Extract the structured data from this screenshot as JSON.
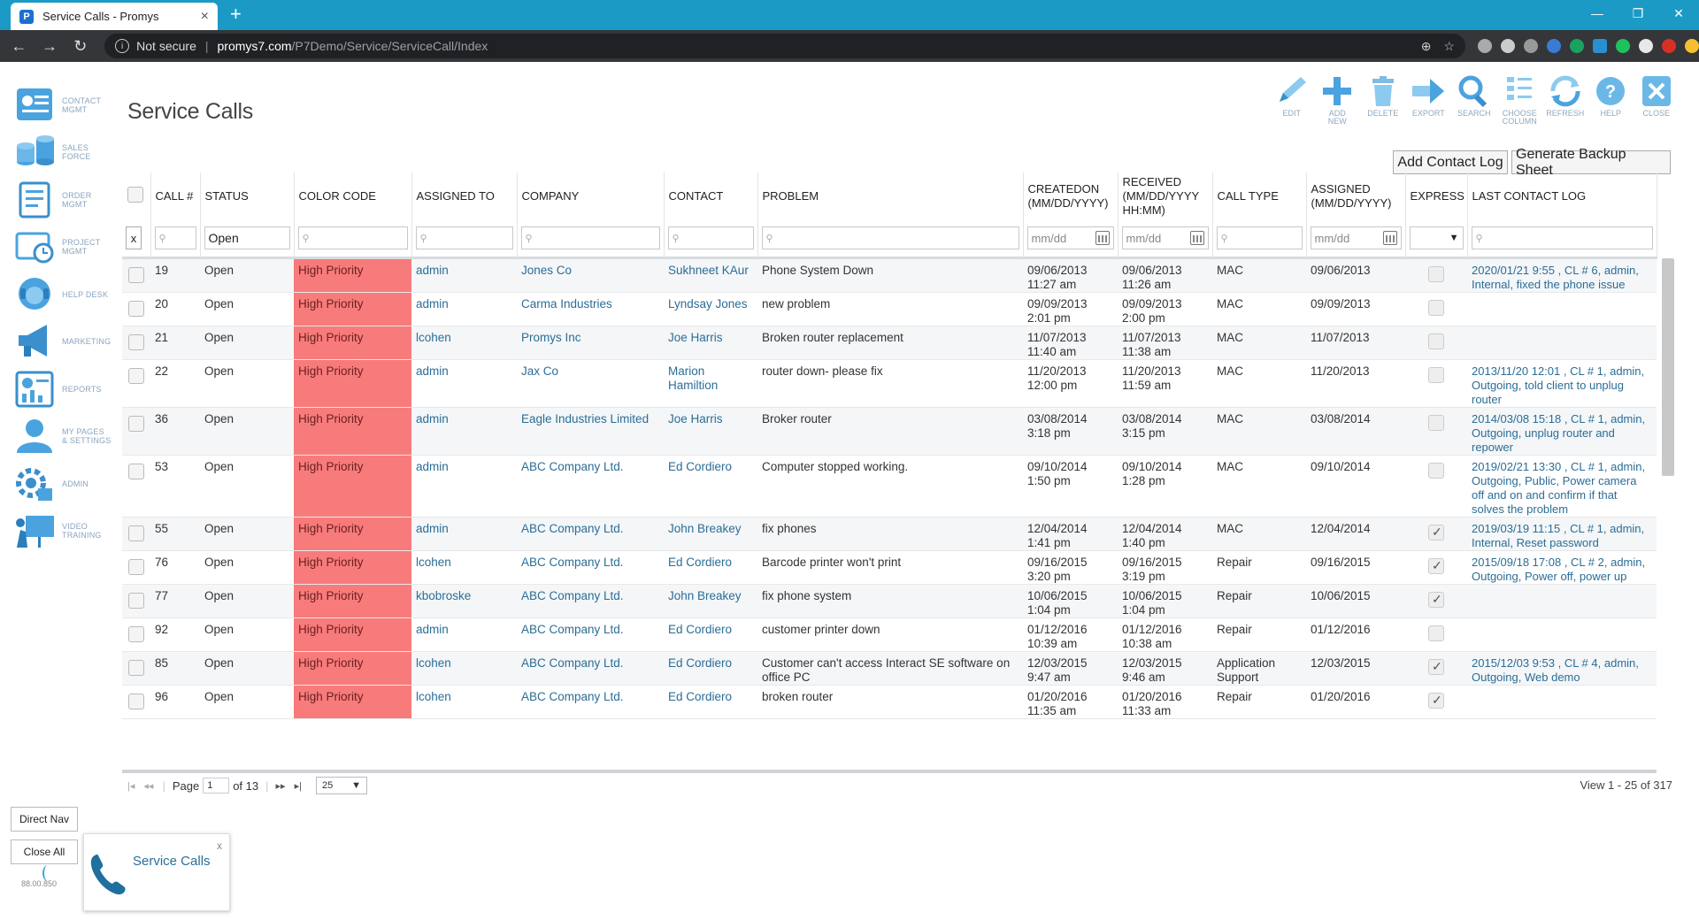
{
  "browser": {
    "tab_title": "Service Calls - Promys",
    "favicon_letter": "P",
    "new_tab": "+",
    "security_label": "Not secure",
    "url_host": "promys7.com",
    "url_path": "/P7Demo/Service/ServiceCall/Index"
  },
  "leftnav": [
    {
      "label": "CONTACT\nMGMT",
      "icon": "contact-icon"
    },
    {
      "label": "SALES\nFORCE",
      "icon": "sales-icon"
    },
    {
      "label": "ORDER\nMGMT",
      "icon": "order-icon"
    },
    {
      "label": "PROJECT\nMGMT",
      "icon": "project-icon"
    },
    {
      "label": "HELP DESK",
      "icon": "helpdesk-icon"
    },
    {
      "label": "MARKETING",
      "icon": "marketing-icon"
    },
    {
      "label": "REPORTS",
      "icon": "reports-icon"
    },
    {
      "label": "MY PAGES\n& SETTINGS",
      "icon": "user-icon"
    },
    {
      "label": "ADMIN",
      "icon": "admin-icon"
    },
    {
      "label": "VIDEO\nTRAINING",
      "icon": "video-icon"
    }
  ],
  "page": {
    "title": "Service Calls",
    "add_contact_log": "Add Contact Log",
    "generate_backup": "Generate Backup Sheet"
  },
  "toolbar": [
    {
      "label": "EDIT",
      "icon": "edit-icon"
    },
    {
      "label": "ADD\nNEW",
      "icon": "add-icon"
    },
    {
      "label": "DELETE",
      "icon": "trash-icon"
    },
    {
      "label": "EXPORT",
      "icon": "export-icon"
    },
    {
      "label": "SEARCH",
      "icon": "search-icon"
    },
    {
      "label": "CHOOSE\nCOLUMN",
      "icon": "columns-icon"
    },
    {
      "label": "REFRESH",
      "icon": "refresh-icon"
    },
    {
      "label": "HELP",
      "icon": "help-icon"
    },
    {
      "label": "CLOSE",
      "icon": "close-icon"
    }
  ],
  "columns": [
    "CALL #",
    "STATUS",
    "COLOR CODE",
    "ASSIGNED TO",
    "COMPANY",
    "CONTACT",
    "PROBLEM",
    "CREATEDON\n(MM/DD/YYYY)",
    "RECEIVED\n(MM/DD/YYYY\nHH:MM)",
    "CALL TYPE",
    "ASSIGNED\n(MM/DD/YYYY)",
    "EXPRESS",
    "LAST CONTACT LOG"
  ],
  "filters": {
    "clear": "x",
    "status": "Open",
    "date_placeholder": "mm/dd",
    "express_arrow": "▼"
  },
  "rows": [
    {
      "call": "19",
      "status": "Open",
      "color": "High Priority",
      "assigned_to": "admin",
      "company": "Jones Co",
      "contact": "Sukhneet KAur",
      "problem": "Phone System Down",
      "created": "09/06/2013\n11:27 am",
      "received": "09/06/2013\n11:26 am",
      "call_type": "MAC",
      "assigned": "09/06/2013",
      "express": false,
      "log": "2020/01/21 9:55 , CL # 6, admin, Internal, fixed the phone issue"
    },
    {
      "call": "20",
      "status": "Open",
      "color": "High Priority",
      "assigned_to": "admin",
      "company": "Carma Industries",
      "contact": "Lyndsay Jones",
      "problem": "new problem",
      "created": "09/09/2013\n2:01 pm",
      "received": "09/09/2013\n2:00 pm",
      "call_type": "MAC",
      "assigned": "09/09/2013",
      "express": false,
      "log": ""
    },
    {
      "call": "21",
      "status": "Open",
      "color": "High Priority",
      "assigned_to": "lcohen",
      "company": "Promys Inc",
      "contact": "Joe Harris",
      "problem": "Broken router replacement",
      "created": "11/07/2013\n11:40 am",
      "received": "11/07/2013\n11:38 am",
      "call_type": "MAC",
      "assigned": "11/07/2013",
      "express": false,
      "log": ""
    },
    {
      "call": "22",
      "status": "Open",
      "color": "High Priority",
      "assigned_to": "admin",
      "company": "Jax Co",
      "contact": "Marion\nHamiltion",
      "problem": "router down- please fix",
      "created": "11/20/2013\n12:00 pm",
      "received": "11/20/2013\n11:59 am",
      "call_type": "MAC",
      "assigned": "11/20/2013",
      "express": false,
      "log": "2013/11/20 12:01 , CL # 1, admin, Outgoing, told client to unplug router"
    },
    {
      "call": "36",
      "status": "Open",
      "color": "High Priority",
      "assigned_to": "admin",
      "company": "Eagle Industries Limited",
      "contact": "Joe Harris",
      "problem": "Broker router",
      "created": "03/08/2014\n3:18 pm",
      "received": "03/08/2014\n3:15 pm",
      "call_type": "MAC",
      "assigned": "03/08/2014",
      "express": false,
      "log": "2014/03/08 15:18 , CL # 1, admin, Outgoing, unplug router and repower"
    },
    {
      "call": "53",
      "status": "Open",
      "color": "High Priority",
      "assigned_to": "admin",
      "company": "ABC Company Ltd.",
      "contact": "Ed Cordiero",
      "problem": "Computer stopped working.",
      "created": "09/10/2014\n1:50 pm",
      "received": "09/10/2014\n1:28 pm",
      "call_type": "MAC",
      "assigned": "09/10/2014",
      "express": false,
      "log": "2019/02/21 13:30 , CL # 1, admin, Outgoing, Public, Power camera off and on and confirm if that solves the problem"
    },
    {
      "call": "55",
      "status": "Open",
      "color": "High Priority",
      "assigned_to": "admin",
      "company": "ABC Company Ltd.",
      "contact": "John Breakey",
      "problem": "fix phones",
      "created": "12/04/2014\n1:41 pm",
      "received": "12/04/2014\n1:40 pm",
      "call_type": "MAC",
      "assigned": "12/04/2014",
      "express": true,
      "log": "2019/03/19 11:15 , CL # 1, admin, Internal, Reset password"
    },
    {
      "call": "76",
      "status": "Open",
      "color": "High Priority",
      "assigned_to": "lcohen",
      "company": "ABC Company Ltd.",
      "contact": "Ed Cordiero",
      "problem": "Barcode printer won't print",
      "created": "09/16/2015\n3:20 pm",
      "received": "09/16/2015\n3:19 pm",
      "call_type": "Repair",
      "assigned": "09/16/2015",
      "express": true,
      "log": "2015/09/18 17:08 , CL # 2, admin, Outgoing, Power off, power up"
    },
    {
      "call": "77",
      "status": "Open",
      "color": "High Priority",
      "assigned_to": "kbobroske",
      "company": "ABC Company Ltd.",
      "contact": "John Breakey",
      "problem": "fix phone system",
      "created": "10/06/2015\n1:04 pm",
      "received": "10/06/2015\n1:04 pm",
      "call_type": "Repair",
      "assigned": "10/06/2015",
      "express": true,
      "log": ""
    },
    {
      "call": "92",
      "status": "Open",
      "color": "High Priority",
      "assigned_to": "admin",
      "company": "ABC Company Ltd.",
      "contact": "Ed Cordiero",
      "problem": "customer printer down",
      "created": "01/12/2016\n10:39 am",
      "received": "01/12/2016\n10:38 am",
      "call_type": "Repair",
      "assigned": "01/12/2016",
      "express": false,
      "log": ""
    },
    {
      "call": "85",
      "status": "Open",
      "color": "High Priority",
      "assigned_to": "lcohen",
      "company": "ABC Company Ltd.",
      "contact": "Ed Cordiero",
      "problem": "Customer can't access Interact SE software on office PC",
      "created": "12/03/2015\n9:47 am",
      "received": "12/03/2015\n9:46 am",
      "call_type": "Application\nSupport",
      "assigned": "12/03/2015",
      "express": true,
      "log": "2015/12/03 9:53 , CL # 4, admin, Outgoing, Web demo"
    },
    {
      "call": "96",
      "status": "Open",
      "color": "High Priority",
      "assigned_to": "lcohen",
      "company": "ABC Company Ltd.",
      "contact": "Ed Cordiero",
      "problem": "broken router",
      "created": "01/20/2016\n11:35 am",
      "received": "01/20/2016\n11:33 am",
      "call_type": "Repair",
      "assigned": "01/20/2016",
      "express": true,
      "log": ""
    }
  ],
  "pager": {
    "page_label": "Page",
    "page": "1",
    "of": "of 13",
    "page_size": "25",
    "view": "View 1 - 25 of 317"
  },
  "footer": {
    "direct_nav": "Direct Nav",
    "close_all": "Close All",
    "version": "88.00.850",
    "task_title": "Service Calls",
    "task_close": "x"
  },
  "colors": {
    "priority": "#f87b7b",
    "link": "#2b6d96",
    "chrome": "#1c9ac6"
  }
}
